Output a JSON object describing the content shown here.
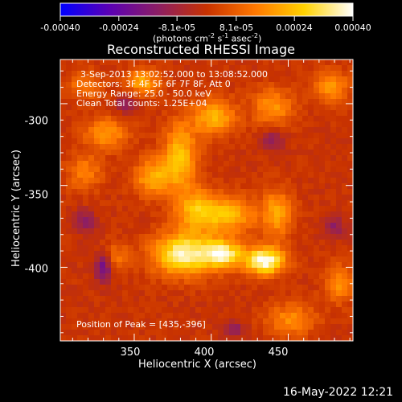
{
  "colorbar": {
    "tick_labels": [
      "-0.00040",
      "-0.00024",
      "-8.1e-05",
      "8.1e-05",
      "0.00024",
      "0.00040"
    ],
    "tick_values": [
      -0.0004,
      -0.00024,
      -8.1e-05,
      8.1e-05,
      0.00024,
      0.0004
    ],
    "range": [
      -0.0004,
      0.0004
    ],
    "unit_prefix": "(photons cm",
    "unit_sup1": "-2",
    "unit_mid1": " s",
    "unit_sup2": "-1",
    "unit_mid2": " asec",
    "unit_sup3": "-2",
    "unit_suffix": ")",
    "colormap": [
      "#0000ff",
      "#5a00b4",
      "#8c1e64",
      "#c83200",
      "#ff7800",
      "#ffd200",
      "#ffffff"
    ]
  },
  "title": "Reconstructed RHESSI Image",
  "info_lines": [
    "3-Sep-2013 13:02:52.000 to 13:08:52.000",
    "Detectors: 3F 4F 5F 6F 7F 8F, Att 0",
    "Energy Range: 25.0 - 50.0 keV",
    "Clean     Total counts: 1.25E+04"
  ],
  "peak_text": "Position of Peak = [435,-396]",
  "date_stamp": "16-May-2022 12:21",
  "chart_data": {
    "type": "heatmap",
    "title": "Reconstructed RHESSI Image",
    "xlabel": "Heliocentric X (arcsec)",
    "ylabel": "Heliocentric Y (arcsec)",
    "xlim": [
      302,
      492
    ],
    "ylim": [
      -445,
      -273
    ],
    "x_ticks": [
      350,
      400,
      450
    ],
    "y_ticks": [
      -300,
      -350,
      -400
    ],
    "x_tick_labels": [
      "350",
      "400",
      "450"
    ],
    "y_tick_labels": [
      "-300",
      "-350",
      "-400"
    ],
    "value_range": [
      -0.0004,
      0.0004
    ],
    "peak": {
      "x": 435,
      "y": -396
    },
    "sources": [
      {
        "x": 435,
        "y": -396,
        "amp": 1.0,
        "sx": 9,
        "sy": 6
      },
      {
        "x": 382,
        "y": -392,
        "amp": 0.9,
        "sx": 14,
        "sy": 9
      },
      {
        "x": 408,
        "y": -392,
        "amp": 0.8,
        "sx": 9,
        "sy": 6
      },
      {
        "x": 412,
        "y": -368,
        "amp": 0.55,
        "sx": 12,
        "sy": 8
      },
      {
        "x": 390,
        "y": -365,
        "amp": 0.55,
        "sx": 10,
        "sy": 9
      },
      {
        "x": 380,
        "y": -332,
        "amp": 0.6,
        "sx": 8,
        "sy": 14
      },
      {
        "x": 362,
        "y": -345,
        "amp": 0.5,
        "sx": 9,
        "sy": 8
      },
      {
        "x": 402,
        "y": -308,
        "amp": 0.55,
        "sx": 10,
        "sy": 8
      },
      {
        "x": 440,
        "y": -302,
        "amp": 0.45,
        "sx": 9,
        "sy": 8
      },
      {
        "x": 443,
        "y": -367,
        "amp": 0.5,
        "sx": 7,
        "sy": 10
      },
      {
        "x": 332,
        "y": -318,
        "amp": 0.45,
        "sx": 10,
        "sy": 7
      },
      {
        "x": 318,
        "y": -342,
        "amp": 0.35,
        "sx": 8,
        "sy": 8
      },
      {
        "x": 355,
        "y": -287,
        "amp": 0.5,
        "sx": 8,
        "sy": 6
      },
      {
        "x": 318,
        "y": -289,
        "amp": 0.35,
        "sx": 8,
        "sy": 6
      },
      {
        "x": 478,
        "y": -290,
        "amp": 0.45,
        "sx": 8,
        "sy": 7
      },
      {
        "x": 483,
        "y": -410,
        "amp": 0.4,
        "sx": 7,
        "sy": 8
      },
      {
        "x": 452,
        "y": -432,
        "amp": 0.4,
        "sx": 11,
        "sy": 7
      },
      {
        "x": 338,
        "y": -394,
        "amp": 0.3,
        "sx": 7,
        "sy": 6
      }
    ],
    "negative_sources": [
      {
        "x": 330,
        "y": -400,
        "amp": -0.55,
        "sx": 4,
        "sy": 6
      },
      {
        "x": 318,
        "y": -372,
        "amp": -0.35,
        "sx": 5,
        "sy": 5
      },
      {
        "x": 345,
        "y": -300,
        "amp": -0.35,
        "sx": 5,
        "sy": 5
      },
      {
        "x": 440,
        "y": -322,
        "amp": -0.3,
        "sx": 5,
        "sy": 5
      },
      {
        "x": 480,
        "y": -375,
        "amp": -0.3,
        "sx": 5,
        "sy": 5
      },
      {
        "x": 415,
        "y": -438,
        "amp": -0.3,
        "sx": 5,
        "sy": 4
      }
    ]
  }
}
